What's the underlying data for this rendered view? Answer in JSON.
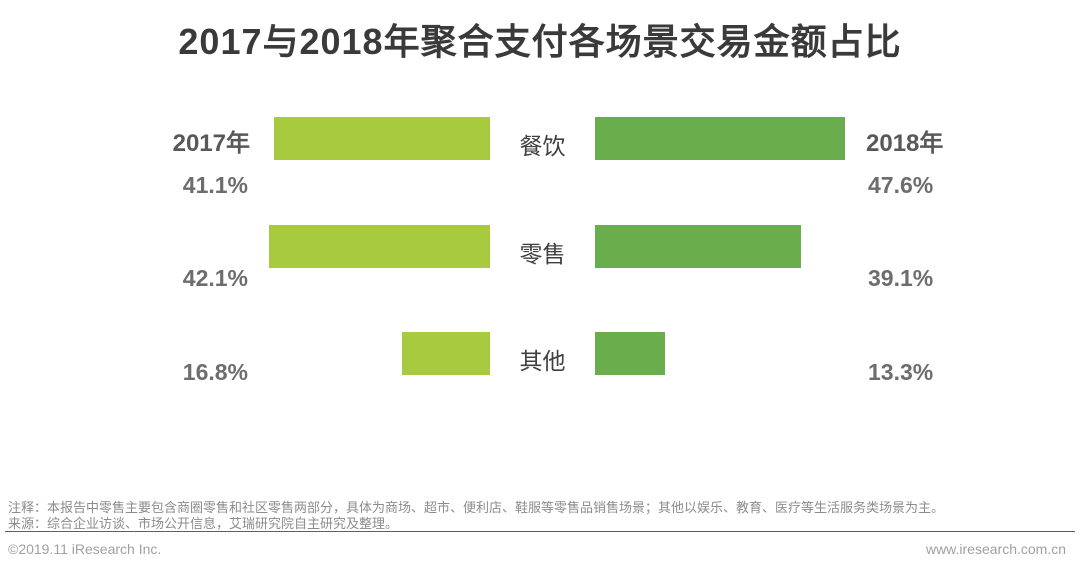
{
  "title": "2017与2018年聚合支付各场景交易金额占比",
  "chart_data": {
    "type": "bar",
    "variant": "tornado",
    "orientation": "horizontal",
    "categories": [
      "餐饮",
      "零售",
      "其他"
    ],
    "series": [
      {
        "name": "2017年",
        "side": "left",
        "color": "#a7ca3e",
        "values": [
          41.1,
          42.1,
          16.8
        ],
        "labels": [
          "41.1%",
          "42.1%",
          "16.8%"
        ]
      },
      {
        "name": "2018年",
        "side": "right",
        "color": "#69ad4c",
        "values": [
          47.6,
          39.1,
          13.3
        ],
        "labels": [
          "47.6%",
          "39.1%",
          "13.3%"
        ]
      }
    ],
    "xlim": [
      0,
      50
    ],
    "grid": false,
    "legend_position": "beside-first-row",
    "value_unit": "%"
  },
  "footer": {
    "note": "注释：本报告中零售主要包含商圈零售和社区零售两部分，具体为商场、超市、便利店、鞋服等零售品销售场景；其他以娱乐、教育、医疗等生活服务类场景为主。",
    "source": "来源：综合企业访谈、市场公开信息，艾瑞研究院自主研究及整理。",
    "copyright": "©2019.11 iResearch Inc.",
    "website": "www.iresearch.com.cn"
  }
}
